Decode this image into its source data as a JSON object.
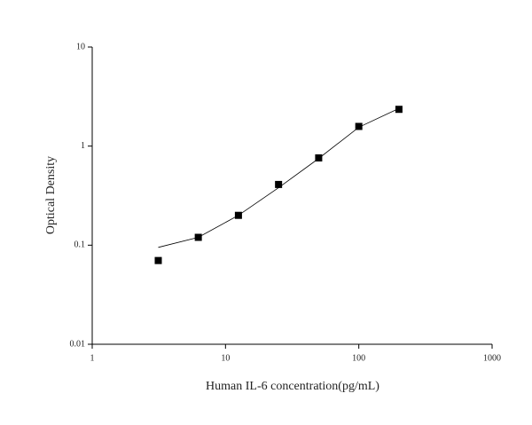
{
  "chart_data": {
    "type": "scatter",
    "x_label": "Human IL-6 concentration(pg/mL)",
    "y_label": "Optical Density",
    "x": [
      3.13,
      6.25,
      12.5,
      25,
      50,
      100,
      200
    ],
    "series": [
      {
        "color": "#000000",
        "marker": "square",
        "values": [
          0.07,
          0.12,
          0.2,
          0.41,
          0.76,
          1.58,
          2.35
        ]
      },
      {
        "color": "#000000",
        "marker": "line",
        "values": [
          0.095,
          0.12,
          0.2,
          0.38,
          0.75,
          1.55,
          2.4
        ]
      }
    ],
    "xscale": "log",
    "yscale": "log",
    "xlim": [
      1,
      1000
    ],
    "ylim": [
      0.01,
      10
    ],
    "xticks": [
      1,
      10,
      100,
      1000
    ],
    "yticks": [
      0.01,
      0.1,
      1,
      10
    ]
  }
}
